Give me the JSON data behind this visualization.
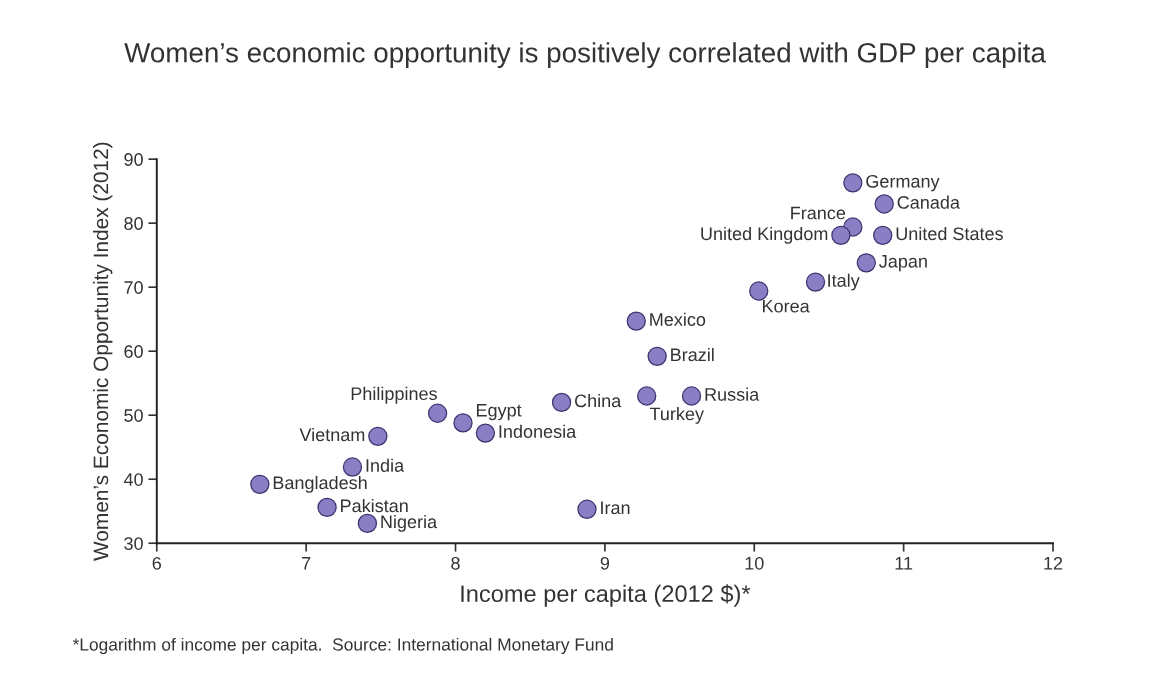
{
  "chart_data": {
    "type": "scatter",
    "title": "Women’s economic opportunity is positively correlated with GDP per capita",
    "xlabel": "Income per capita (2012 $)*",
    "ylabel": "Women’s Economic Opportunity Index (2012)",
    "x": [
      10.66,
      10.87,
      10.66,
      10.58,
      10.86,
      10.75,
      10.41,
      10.03,
      9.21,
      9.35,
      9.58,
      9.28,
      8.71,
      7.88,
      8.05,
      8.2,
      7.48,
      7.31,
      6.69,
      7.14,
      7.41,
      8.88
    ],
    "values": [
      86.3,
      83.0,
      79.4,
      78.1,
      78.1,
      73.8,
      70.8,
      69.4,
      64.7,
      59.2,
      53.0,
      53.0,
      52.0,
      50.3,
      48.8,
      47.2,
      46.7,
      41.9,
      39.2,
      35.6,
      33.1,
      35.3
    ],
    "color": "#8a7fc4",
    "marker": "circle",
    "xlim": [
      6,
      12
    ],
    "xticks": [
      6,
      7,
      8,
      9,
      10,
      11,
      12
    ],
    "ylim": [
      30,
      90
    ],
    "yticks": [
      30,
      40,
      50,
      60,
      70,
      80,
      90
    ],
    "grid": false,
    "annotations": [
      {
        "text": "Germany",
        "x": 10.66,
        "y": 86.3
      },
      {
        "text": "Canada",
        "x": 10.87,
        "y": 83.0
      },
      {
        "text": "France",
        "x": 10.66,
        "y": 79.4
      },
      {
        "text": "United Kingdom",
        "x": 10.58,
        "y": 78.1
      },
      {
        "text": "United States",
        "x": 10.86,
        "y": 78.1
      },
      {
        "text": "Japan",
        "x": 10.75,
        "y": 73.8
      },
      {
        "text": "Italy",
        "x": 10.41,
        "y": 70.8
      },
      {
        "text": "Korea",
        "x": 10.03,
        "y": 69.4
      },
      {
        "text": "Mexico",
        "x": 9.21,
        "y": 64.7
      },
      {
        "text": "Brazil",
        "x": 9.35,
        "y": 59.2
      },
      {
        "text": "Russia",
        "x": 9.58,
        "y": 53.0
      },
      {
        "text": "Turkey",
        "x": 9.28,
        "y": 53.0
      },
      {
        "text": "China",
        "x": 8.71,
        "y": 52.0
      },
      {
        "text": "Philippines",
        "x": 7.88,
        "y": 50.3
      },
      {
        "text": "Egypt",
        "x": 8.05,
        "y": 48.8
      },
      {
        "text": "Indonesia",
        "x": 8.2,
        "y": 47.2
      },
      {
        "text": "Vietnam",
        "x": 7.48,
        "y": 46.7
      },
      {
        "text": "India",
        "x": 7.31,
        "y": 41.9
      },
      {
        "text": "Bangladesh",
        "x": 6.69,
        "y": 39.2
      },
      {
        "text": "Pakistan",
        "x": 7.14,
        "y": 35.6
      },
      {
        "text": "Nigeria",
        "x": 7.41,
        "y": 33.1
      },
      {
        "text": "Iran",
        "x": 8.88,
        "y": 35.3
      },
      "*Logarithm of income per capita.  Source: International Monetary Fund"
    ]
  }
}
